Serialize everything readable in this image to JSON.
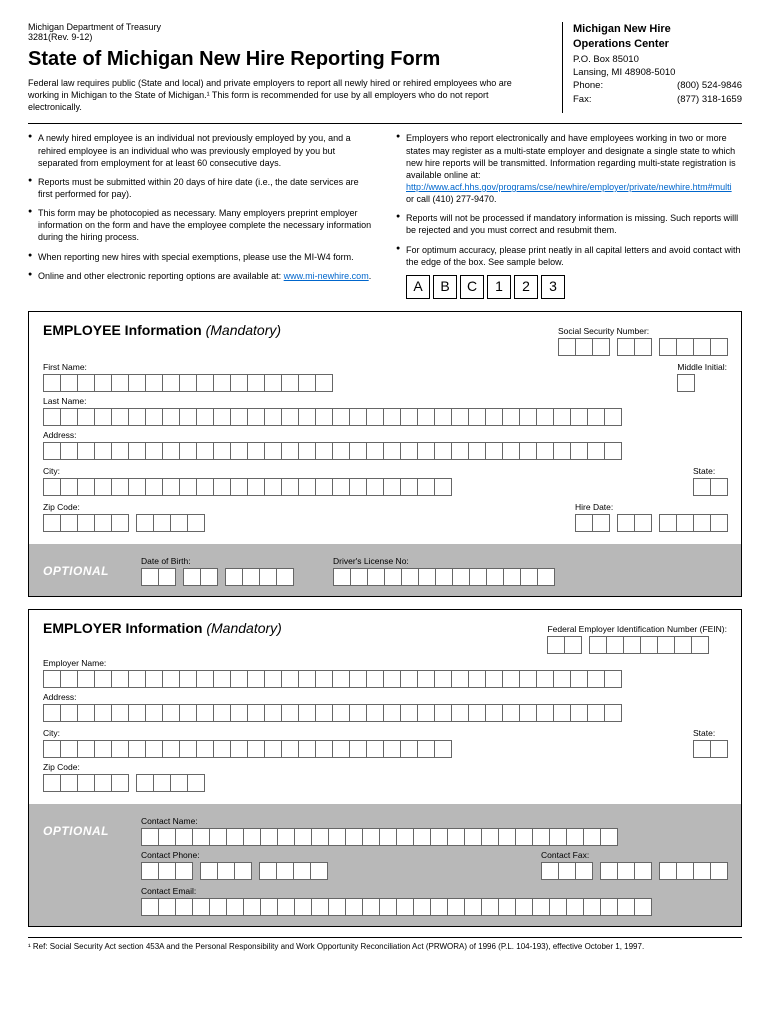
{
  "header": {
    "dept": "Michigan Department of Treasury",
    "formnum": "3281(Rev. 9-12)",
    "title": "State of Michigan New Hire Reporting Form",
    "intro": "Federal law requires public (State and local) and private employers to report all newly hired or rehired employees who are working in Michigan to the State of Michigan.¹ This form is recommended for use by all employers who do not report electronically."
  },
  "contact": {
    "title1": "Michigan New Hire",
    "title2": "Operations Center",
    "po": "P.O. Box 85010",
    "city": "Lansing, MI 48908-5010",
    "phone_label": "Phone:",
    "phone": "(800) 524-9846",
    "fax_label": "Fax:",
    "fax": "(877) 318-1659"
  },
  "bullets_left": [
    "A newly hired employee is an individual not previously employed by you, and a rehired employee is an individual who was previously employed by you but separated from employment for at least 60 consecutive days.",
    "Reports must be submitted within 20 days of hire date (i.e., the date services are first performed for pay).",
    "This form may be photocopied as necessary. Many employers preprint employer information on the form and have the employee complete the necessary information during the hiring process.",
    "When reporting new hires with special exemptions, please use the MI-W4 form.",
    "Online and other electronic reporting options are available at:"
  ],
  "link_left": "www.mi-newhire.com",
  "bullets_right": [
    "Employers who report electronically and have employees working in two or more states may register as a multi-state employer and designate a single state to which new hire reports will be transmitted. Information regarding multi-state registration is available online at:",
    "Reports will not be processed if mandatory information is missing. Such reports willl be rejected and you must correct and resubmit them.",
    "For optimum accuracy, please print neatly in all capital letters and avoid contact with the edge of the box. See sample below."
  ],
  "link_right": "http://www.acf.hhs.gov/programs/cse/newhire/employer/private/newhire.htm#multi",
  "link_right_suffix": " or call (410) 277-9470.",
  "sample": [
    "A",
    "B",
    "C",
    "1",
    "2",
    "3"
  ],
  "employee": {
    "heading": "EMPLOYEE Information",
    "mandatory": "(Mandatory)",
    "ssn_label": "Social Security Number:",
    "first_name": "First Name:",
    "middle": "Middle Initial:",
    "last_name": "Last Name:",
    "address": "Address:",
    "city": "City:",
    "state": "State:",
    "zip": "Zip Code:",
    "hire_date": "Hire Date:",
    "optional": "OPTIONAL",
    "dob": "Date of Birth:",
    "dl": "Driver's License No:"
  },
  "employer": {
    "heading": "EMPLOYER Information",
    "mandatory": "(Mandatory)",
    "fein_label": "Federal Employer Identification Number (FEIN):",
    "name": "Employer Name:",
    "address": "Address:",
    "city": "City:",
    "state": "State:",
    "zip": "Zip Code:",
    "optional": "OPTIONAL",
    "contact_name": "Contact Name:",
    "contact_phone": "Contact Phone:",
    "contact_fax": "Contact Fax:",
    "contact_email": "Contact Email:"
  },
  "footnote": "¹ Ref: Social Security Act section 453A and the Personal Responsibility and Work Opportunity Reconciliation Act (PRWORA) of 1996 (P.L. 104-193), effective October 1, 1997.",
  "box_counts": {
    "ssn_groups": [
      3,
      2,
      4
    ],
    "first_name": 17,
    "middle": 1,
    "last_name": 34,
    "address": 34,
    "city": 24,
    "state": 2,
    "zip_groups": [
      5,
      4
    ],
    "hire_date_groups": [
      2,
      2,
      4
    ],
    "dob_groups": [
      2,
      2,
      4
    ],
    "dl": 13,
    "fein_groups": [
      2,
      7
    ],
    "employer_name": 34,
    "contact_name": 28,
    "phone_groups": [
      3,
      3,
      4
    ],
    "contact_email": 30
  }
}
